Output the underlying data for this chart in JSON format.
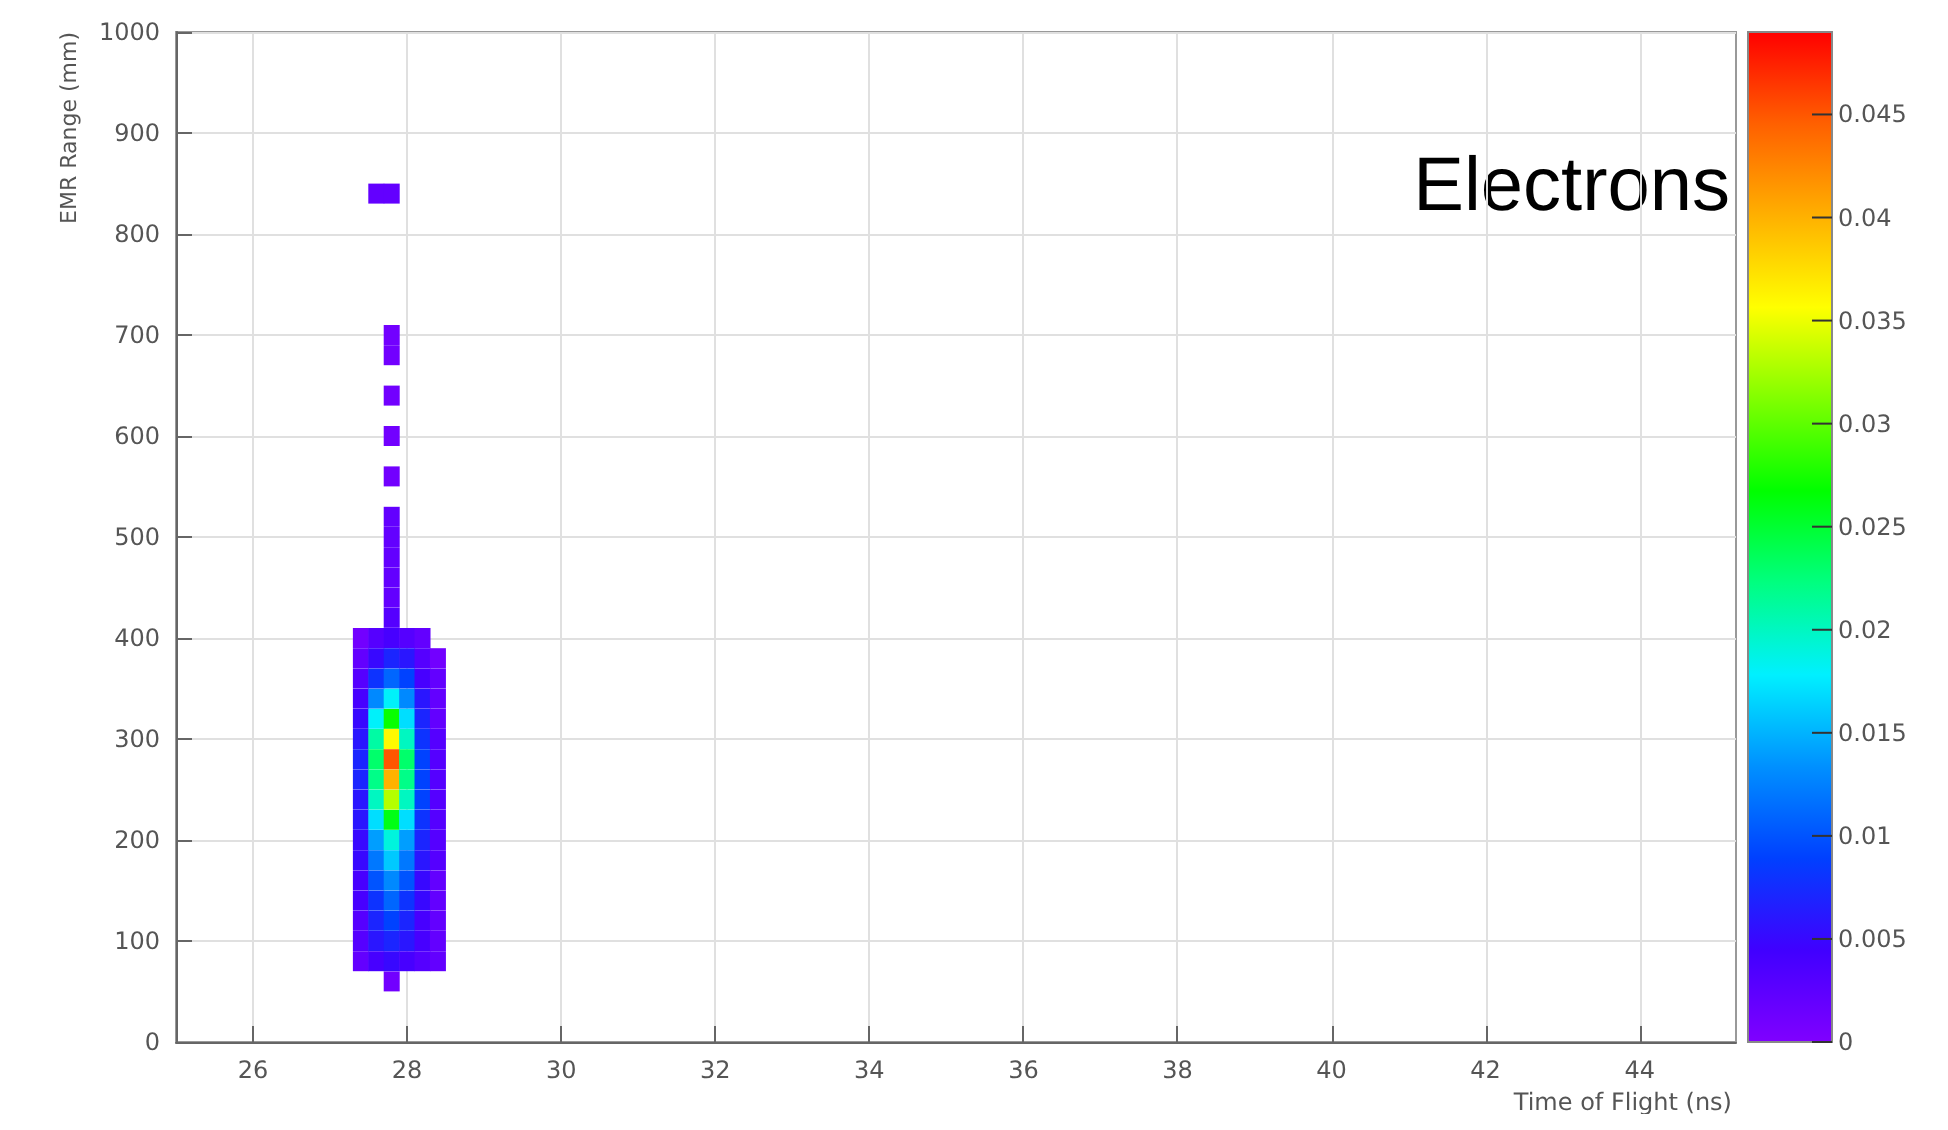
{
  "chart_data": {
    "type": "scatter",
    "xlabel": "Time of Flight (ns)",
    "ylabel": "EMR Range (mm)",
    "annotations": [
      "Electrons"
    ],
    "marker": "square",
    "grid": true,
    "xlim": [
      25,
      45.25
    ],
    "xticks": [
      26,
      28,
      30,
      32,
      34,
      36,
      38,
      40,
      42,
      44
    ],
    "ylim": [
      0,
      1000
    ],
    "yticks": [
      0,
      100,
      200,
      300,
      400,
      500,
      600,
      700,
      800,
      900,
      1000
    ],
    "clim": [
      0,
      0.049
    ],
    "cticks": [
      0,
      0.005,
      0.01,
      0.015,
      0.02,
      0.025,
      0.03,
      0.035,
      0.04,
      0.045
    ],
    "x": [
      27.8,
      27.4,
      27.6,
      27.8,
      28.0,
      28.2,
      28.4,
      27.4,
      27.6,
      27.8,
      28.0,
      28.2,
      28.4,
      27.4,
      27.6,
      27.8,
      28.0,
      28.2,
      28.4,
      27.4,
      27.6,
      27.8,
      28.0,
      28.2,
      28.4,
      27.4,
      27.6,
      27.8,
      28.0,
      28.2,
      28.4,
      27.4,
      27.6,
      27.8,
      28.0,
      28.2,
      28.4,
      27.4,
      27.6,
      27.8,
      28.0,
      28.2,
      28.4,
      27.4,
      27.6,
      27.8,
      28.0,
      28.2,
      28.4,
      27.4,
      27.6,
      27.8,
      28.0,
      28.2,
      28.4,
      27.4,
      27.6,
      27.8,
      28.0,
      28.2,
      28.4,
      27.4,
      27.6,
      27.8,
      28.0,
      28.2,
      28.4,
      27.4,
      27.6,
      27.8,
      28.0,
      28.2,
      28.4,
      27.4,
      27.6,
      27.8,
      28.0,
      28.2,
      28.4,
      27.4,
      27.6,
      27.8,
      28.0,
      28.2,
      28.4,
      27.4,
      27.6,
      27.8,
      28.0,
      28.2,
      28.4,
      27.4,
      27.6,
      27.8,
      28.0,
      28.2,
      28.4,
      27.4,
      27.6,
      27.8,
      28.0,
      28.2,
      27.8,
      27.8,
      27.8,
      27.8,
      27.8,
      27.8,
      27.8,
      27.8,
      27.8,
      27.8,
      27.8,
      27.6,
      27.8
    ],
    "values": [
      60,
      80,
      80,
      80,
      80,
      80,
      80,
      100,
      100,
      100,
      100,
      100,
      100,
      120,
      120,
      120,
      120,
      120,
      120,
      140,
      140,
      140,
      140,
      140,
      140,
      160,
      160,
      160,
      160,
      160,
      160,
      180,
      180,
      180,
      180,
      180,
      180,
      200,
      200,
      200,
      200,
      200,
      200,
      220,
      220,
      220,
      220,
      220,
      220,
      240,
      240,
      240,
      240,
      240,
      240,
      260,
      260,
      260,
      260,
      260,
      260,
      280,
      280,
      280,
      280,
      280,
      280,
      300,
      300,
      300,
      300,
      300,
      300,
      320,
      320,
      320,
      320,
      320,
      320,
      340,
      340,
      340,
      340,
      340,
      340,
      360,
      360,
      360,
      360,
      360,
      360,
      380,
      380,
      380,
      380,
      380,
      380,
      400,
      400,
      400,
      400,
      400,
      420,
      440,
      460,
      480,
      500,
      520,
      560,
      600,
      640,
      680,
      700,
      840,
      840
    ],
    "cvalues": [
      0.001,
      0.002,
      0.004,
      0.005,
      0.004,
      0.003,
      0.002,
      0.003,
      0.006,
      0.007,
      0.006,
      0.004,
      0.002,
      0.003,
      0.007,
      0.009,
      0.007,
      0.004,
      0.002,
      0.004,
      0.008,
      0.011,
      0.008,
      0.005,
      0.002,
      0.004,
      0.01,
      0.013,
      0.01,
      0.005,
      0.002,
      0.005,
      0.012,
      0.016,
      0.012,
      0.006,
      0.003,
      0.005,
      0.014,
      0.019,
      0.014,
      0.007,
      0.003,
      0.006,
      0.017,
      0.026,
      0.017,
      0.008,
      0.003,
      0.006,
      0.02,
      0.033,
      0.02,
      0.009,
      0.003,
      0.007,
      0.022,
      0.04,
      0.022,
      0.009,
      0.003,
      0.007,
      0.023,
      0.045,
      0.023,
      0.009,
      0.003,
      0.006,
      0.021,
      0.036,
      0.02,
      0.008,
      0.003,
      0.005,
      0.018,
      0.027,
      0.017,
      0.007,
      0.002,
      0.004,
      0.013,
      0.018,
      0.013,
      0.006,
      0.002,
      0.003,
      0.008,
      0.011,
      0.009,
      0.004,
      0.002,
      0.002,
      0.005,
      0.007,
      0.006,
      0.003,
      0.001,
      0.001,
      0.003,
      0.004,
      0.003,
      0.002,
      0.003,
      0.002,
      0.002,
      0.002,
      0.002,
      0.002,
      0.001,
      0.001,
      0.001,
      0.001,
      0.001,
      0.002,
      0.002
    ]
  }
}
